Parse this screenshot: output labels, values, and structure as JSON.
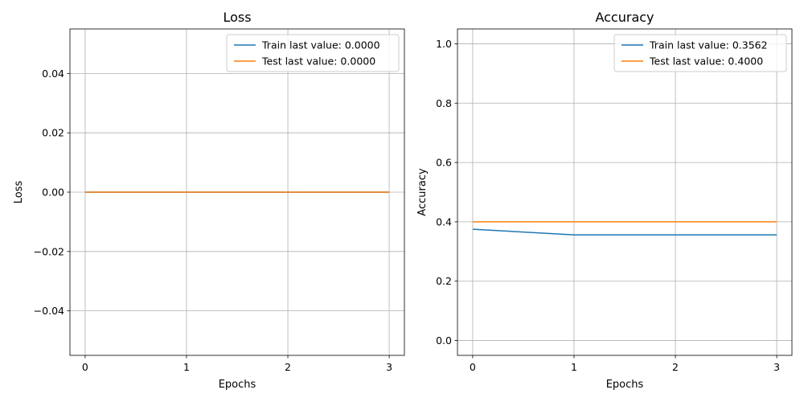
{
  "chart_data": [
    {
      "type": "line",
      "title": "Loss",
      "xlabel": "Epochs",
      "ylabel": "Loss",
      "xlim": [
        -0.15,
        3.15
      ],
      "ylim": [
        -0.055,
        0.055
      ],
      "xticks": [
        0,
        1,
        2,
        3
      ],
      "xtick_labels": [
        "0",
        "1",
        "2",
        "3"
      ],
      "yticks": [
        -0.04,
        -0.02,
        0.0,
        0.02,
        0.04
      ],
      "ytick_labels": [
        "−0.04",
        "−0.02",
        "0.00",
        "0.02",
        "0.04"
      ],
      "grid": true,
      "legend_position": "top-right",
      "series": [
        {
          "name": "Train last value: 0.0000",
          "x": [
            0,
            1,
            2,
            3
          ],
          "values": [
            0.0,
            0.0,
            0.0,
            0.0
          ],
          "color": "#1f77b4"
        },
        {
          "name": "Test last value: 0.0000",
          "x": [
            0,
            1,
            2,
            3
          ],
          "values": [
            0.0,
            0.0,
            0.0,
            0.0
          ],
          "color": "#ff7f0e"
        }
      ]
    },
    {
      "type": "line",
      "title": "Accuracy",
      "xlabel": "Epochs",
      "ylabel": "Accuracy",
      "xlim": [
        -0.15,
        3.15
      ],
      "ylim": [
        -0.05,
        1.05
      ],
      "xticks": [
        0,
        1,
        2,
        3
      ],
      "xtick_labels": [
        "0",
        "1",
        "2",
        "3"
      ],
      "yticks": [
        0.0,
        0.2,
        0.4,
        0.6,
        0.8,
        1.0
      ],
      "ytick_labels": [
        "0.0",
        "0.2",
        "0.4",
        "0.6",
        "0.8",
        "1.0"
      ],
      "grid": true,
      "legend_position": "top-right",
      "series": [
        {
          "name": "Train last value: 0.3562",
          "x": [
            0,
            1,
            2,
            3
          ],
          "values": [
            0.375,
            0.3562,
            0.3562,
            0.3562
          ],
          "color": "#1f77b4"
        },
        {
          "name": "Test last value: 0.4000",
          "x": [
            0,
            1,
            2,
            3
          ],
          "values": [
            0.4,
            0.4,
            0.4,
            0.4
          ],
          "color": "#ff7f0e"
        }
      ]
    }
  ]
}
